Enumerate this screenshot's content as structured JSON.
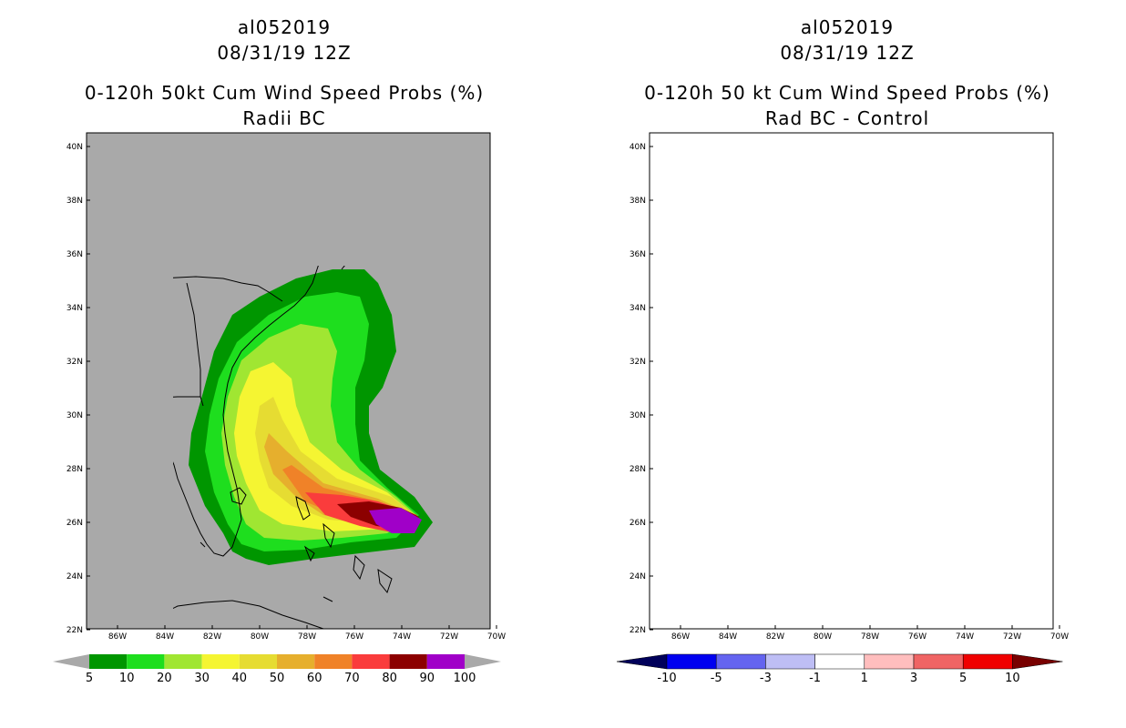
{
  "left_panel": {
    "storm_id": "al052019",
    "datetime": "08/31/19 12Z",
    "title": "0-120h 50kt Cum Wind Speed Probs (%)",
    "subtitle": "Radii BC",
    "colorbar_labels": [
      "5",
      "10",
      "20",
      "30",
      "40",
      "50",
      "60",
      "70",
      "80",
      "90",
      "100"
    ],
    "colorbar_colors": [
      "#009600",
      "#1ede1e",
      "#a0e632",
      "#f5f532",
      "#e6dc32",
      "#e6af2d",
      "#f08228",
      "#fa3c3c",
      "#8c0000",
      "#a000c8"
    ]
  },
  "right_panel": {
    "storm_id": "al052019",
    "datetime": "08/31/19 12Z",
    "title": "0-120h 50 kt Cum Wind Speed Probs (%)",
    "subtitle": "Rad BC - Control",
    "colorbar_labels": [
      "-10",
      "-5",
      "-3",
      "-1",
      "1",
      "3",
      "5",
      "10"
    ],
    "colorbar_colors": [
      "#00005a",
      "#0000f0",
      "#6464f0",
      "#bebef5",
      "#ffffff",
      "#ffbebe",
      "#f06464",
      "#f00000",
      "#780000"
    ]
  },
  "axes": {
    "lat_labels": [
      "40N",
      "38N",
      "36N",
      "34N",
      "32N",
      "30N",
      "28N",
      "26N",
      "24N",
      "22N"
    ],
    "lon_labels": [
      "86W",
      "84W",
      "82W",
      "80W",
      "78W",
      "76W",
      "74W",
      "72W",
      "70W"
    ]
  }
}
